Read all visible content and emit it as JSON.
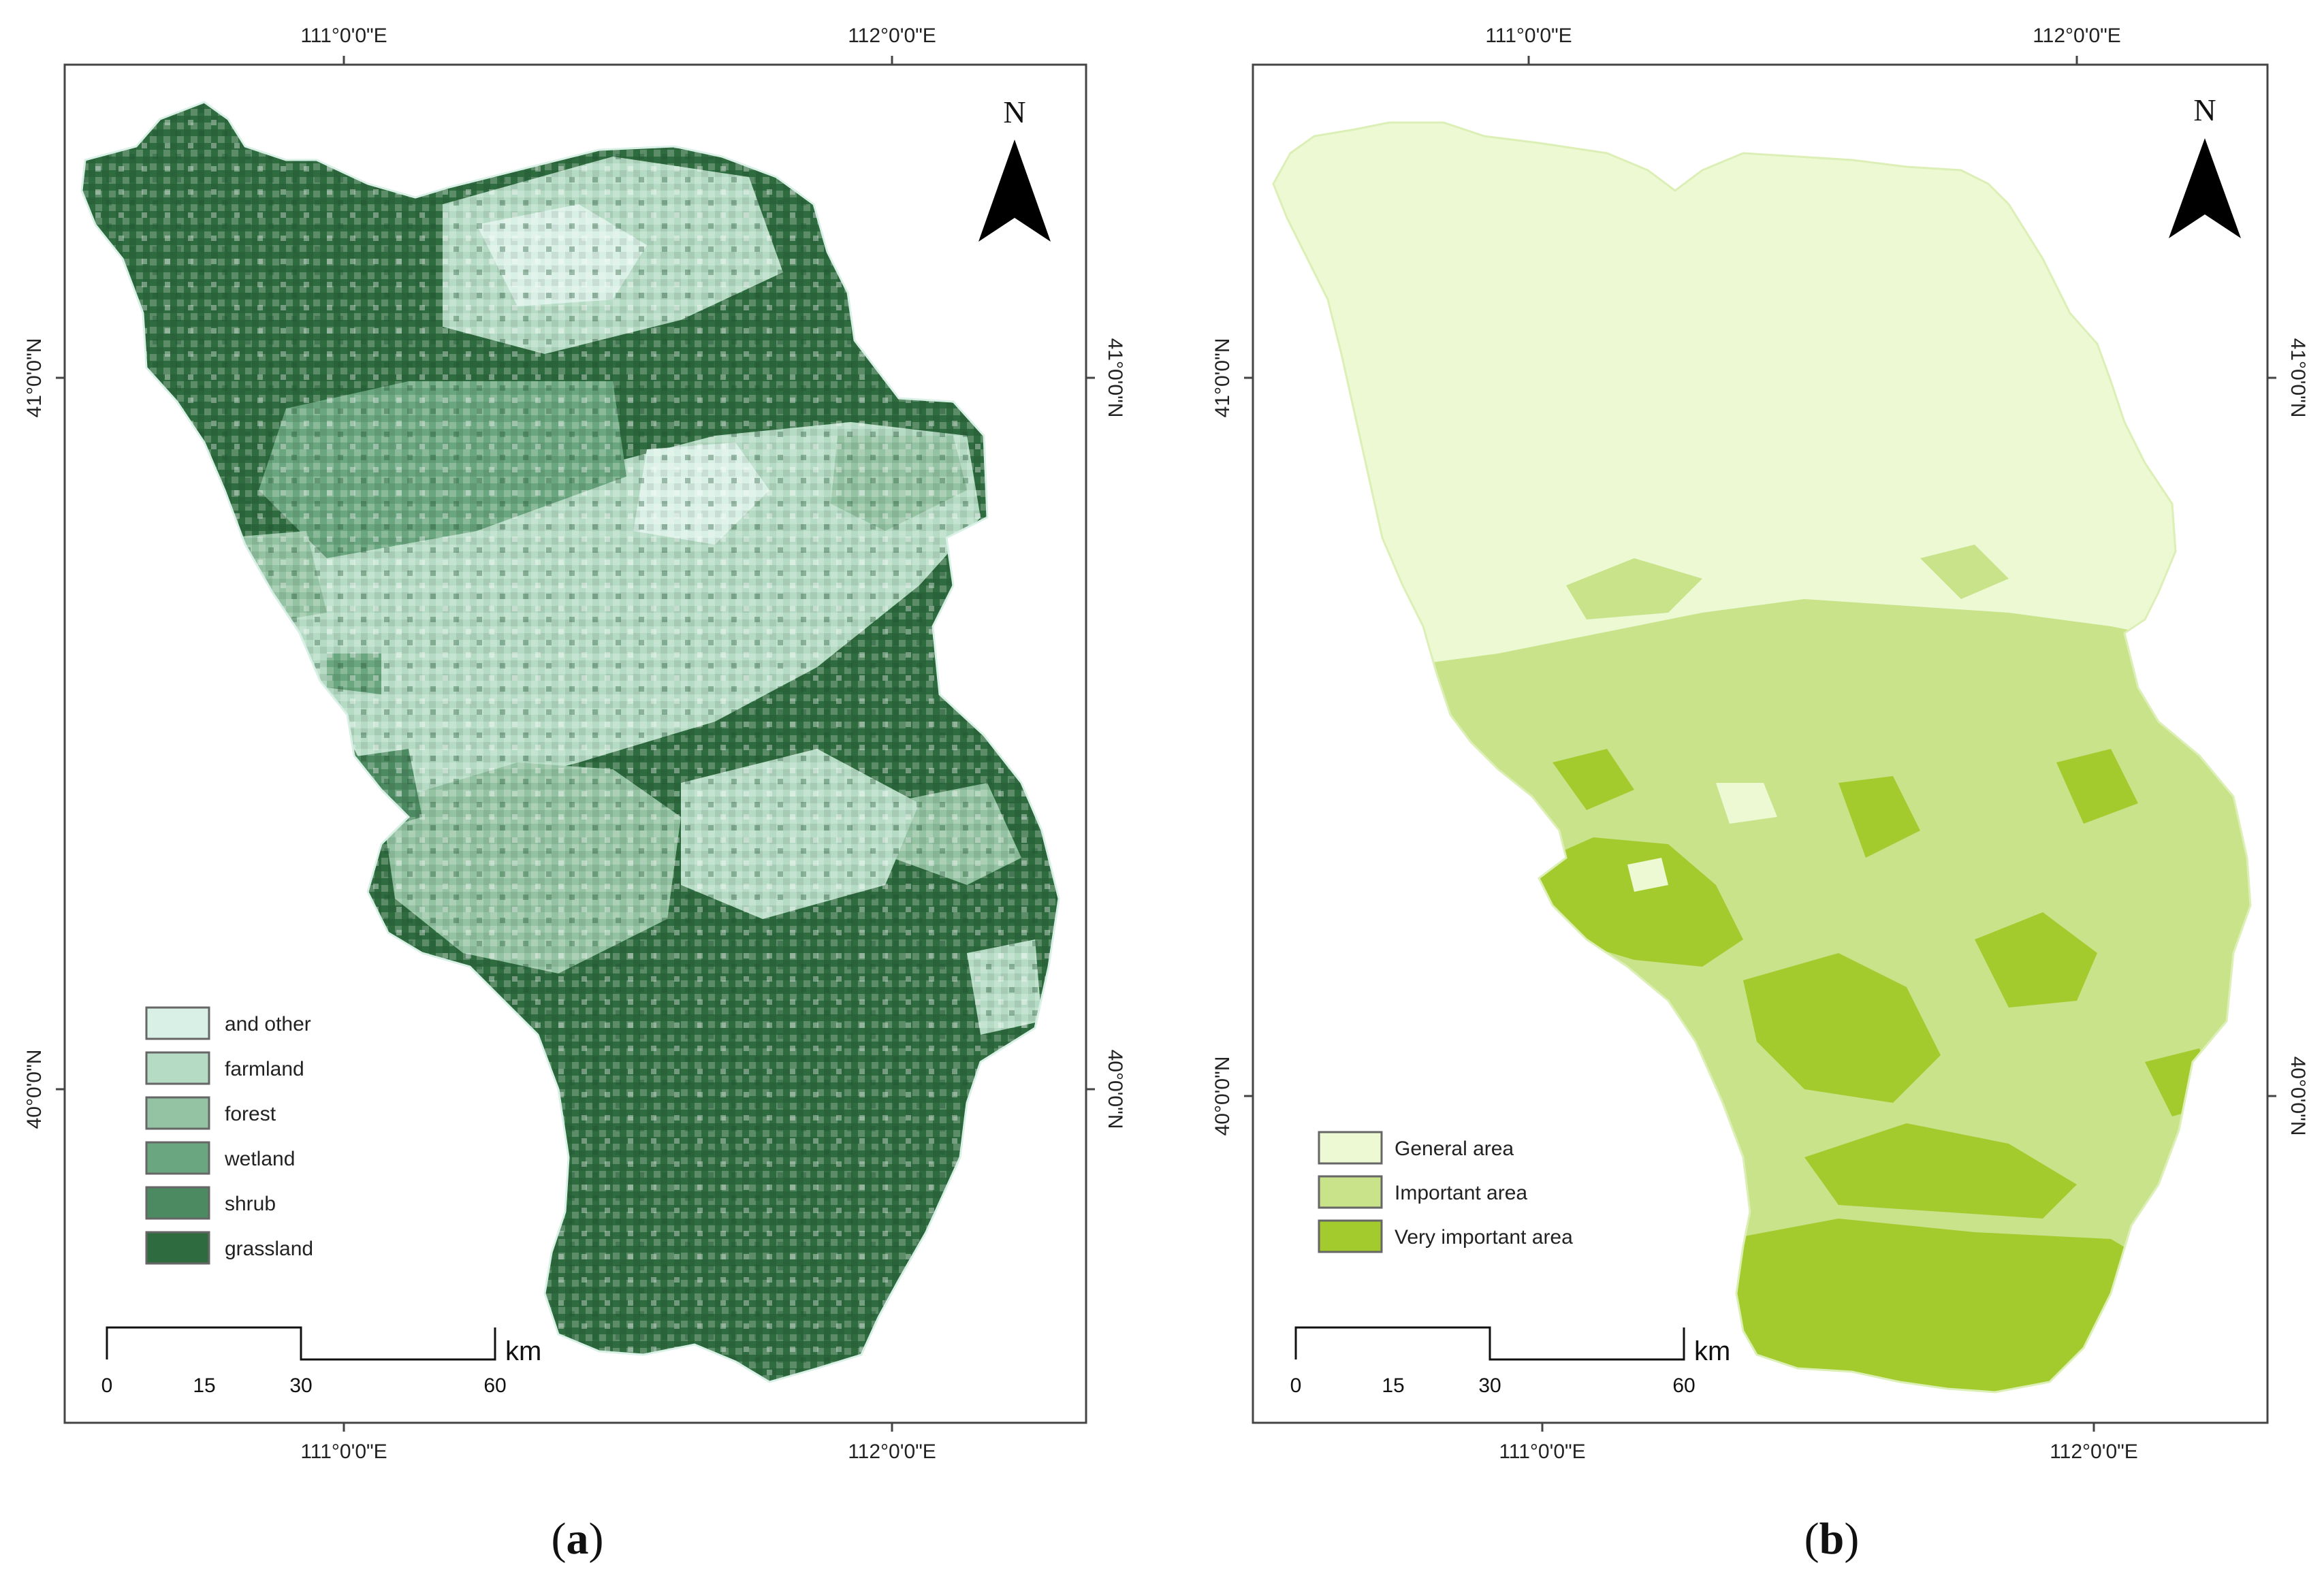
{
  "panels": [
    {
      "id": "a",
      "caption": {
        "open": "(",
        "letter": "a",
        "close": ")"
      },
      "ticks": {
        "top": [
          "111°0'0\"E",
          "112°0'0\"E"
        ],
        "bottom": [
          "111°0'0\"E",
          "112°0'0\"E"
        ],
        "left": [
          "41°0'0\"N",
          "40°0'0\"N"
        ],
        "right": [
          "41°0'0\"N",
          "40°0'0\"N"
        ]
      },
      "north_label": "N",
      "scale": {
        "unit": "km",
        "labels": [
          "0",
          "15",
          "30",
          "60"
        ]
      },
      "legend": [
        {
          "label": "and other",
          "color": "#d9f0e6"
        },
        {
          "label": "farmland",
          "color": "#b5dbc4"
        },
        {
          "label": "forest",
          "color": "#93c3a2"
        },
        {
          "label": "wetland",
          "color": "#6aa67f"
        },
        {
          "label": "shrub",
          "color": "#4c8a61"
        },
        {
          "label": "grassland",
          "color": "#2e6b3e"
        }
      ]
    },
    {
      "id": "b",
      "caption": {
        "open": "(",
        "letter": "b",
        "close": ")"
      },
      "ticks": {
        "top": [
          "111°0'0\"E",
          "112°0'0\"E"
        ],
        "bottom": [
          "111°0'0\"E",
          "112°0'0\"E"
        ],
        "left": [
          "41°0'0\"N",
          "40°0'0\"N"
        ],
        "right": [
          "41°0'0\"N",
          "40°0'0\"N"
        ]
      },
      "north_label": "N",
      "scale": {
        "unit": "km",
        "labels": [
          "0",
          "15",
          "30",
          "60"
        ]
      },
      "legend": [
        {
          "label": "General area",
          "color": "#ecf9d2"
        },
        {
          "label": "Important area",
          "color": "#c9e38a"
        },
        {
          "label": "Very important area",
          "color": "#a3cb2e"
        }
      ]
    }
  ]
}
